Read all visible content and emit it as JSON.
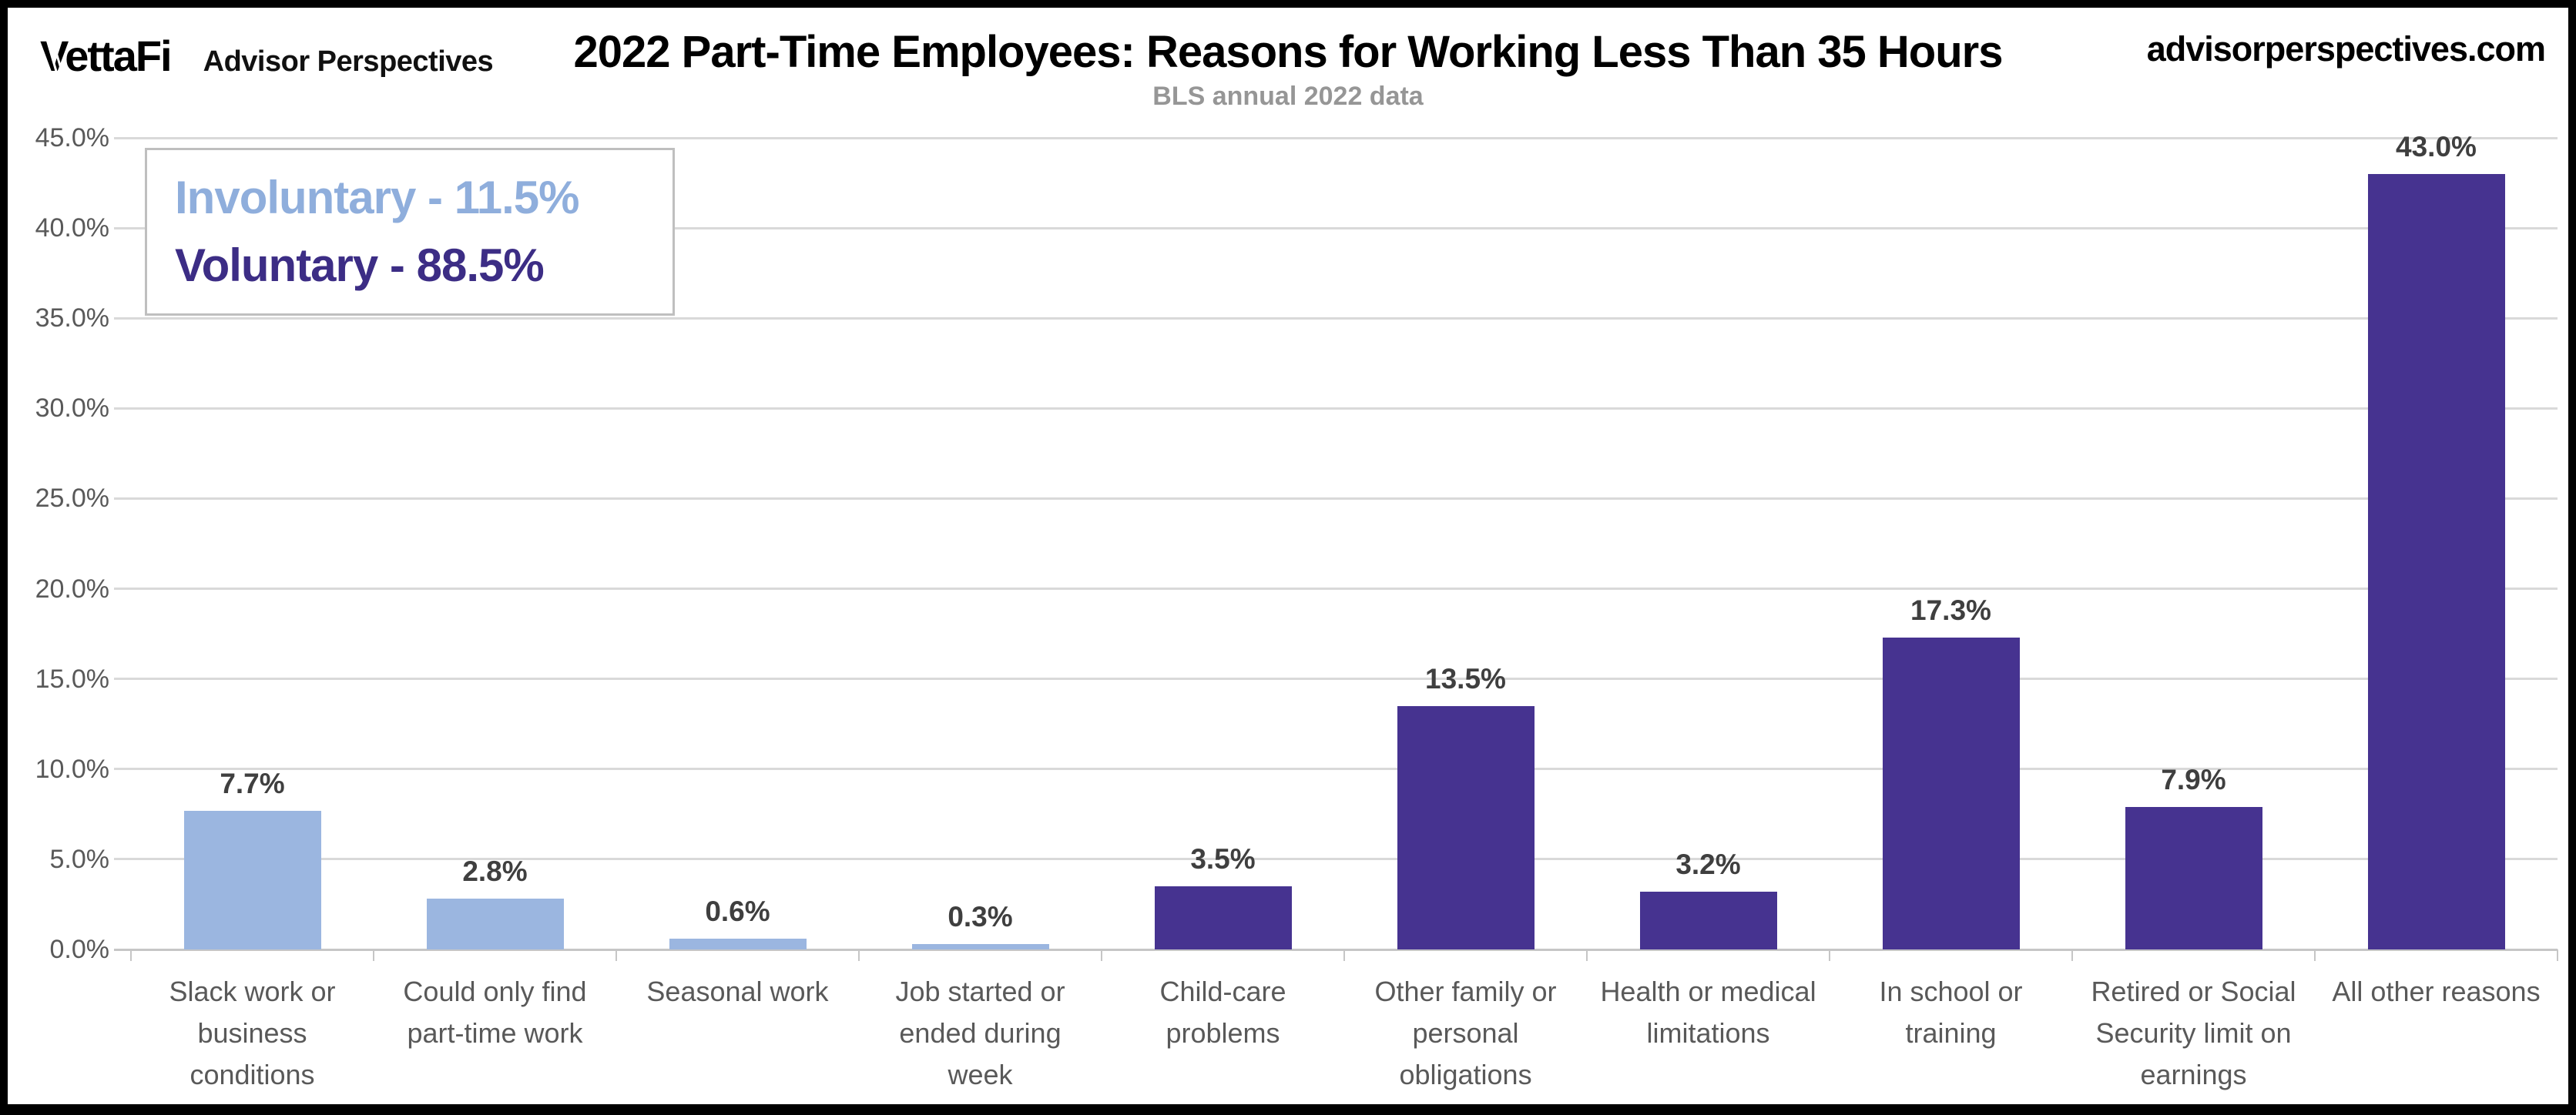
{
  "header": {
    "logo_primary": "VettaFi",
    "logo_secondary": "Advisor Perspectives",
    "title": "2022 Part-Time Employees: Reasons for Working Less Than 35 Hours",
    "subtitle": "BLS annual 2022 data",
    "website": "advisorperspectives.com"
  },
  "legend": {
    "items": [
      {
        "label": "Involuntary - 11.5%",
        "color": "#8FAEDC"
      },
      {
        "label": "Voluntary - 88.5%",
        "color": "#3C2D85"
      }
    ]
  },
  "chart_data": {
    "type": "bar",
    "title": "2022 Part-Time Employees: Reasons for Working Less Than 35 Hours",
    "subtitle": "BLS annual 2022 data",
    "categories": [
      "Slack work or\nbusiness\nconditions",
      "Could only find\npart-time work",
      "Seasonal work",
      "Job started or\nended during\nweek",
      "Child-care\nproblems",
      "Other family or\npersonal\nobligations",
      "Health or medical\nlimitations",
      "In school or\ntraining",
      "Retired or Social\nSecurity limit on\nearnings",
      "All other reasons"
    ],
    "values": [
      7.7,
      2.8,
      0.6,
      0.3,
      3.5,
      13.5,
      3.2,
      17.3,
      7.9,
      43.0
    ],
    "groups": [
      "involuntary",
      "involuntary",
      "involuntary",
      "involuntary",
      "voluntary",
      "voluntary",
      "voluntary",
      "voluntary",
      "voluntary",
      "voluntary"
    ],
    "group_colors": {
      "involuntary": "#9BB6E0",
      "voluntary": "#463390"
    },
    "group_totals": {
      "involuntary": 11.5,
      "voluntary": 88.5
    },
    "xlabel": "",
    "ylabel": "",
    "ylim": [
      0,
      45
    ],
    "y_tick_step": 5,
    "y_tick_suffix": "%",
    "grid": true,
    "legend_position": "top-left"
  }
}
